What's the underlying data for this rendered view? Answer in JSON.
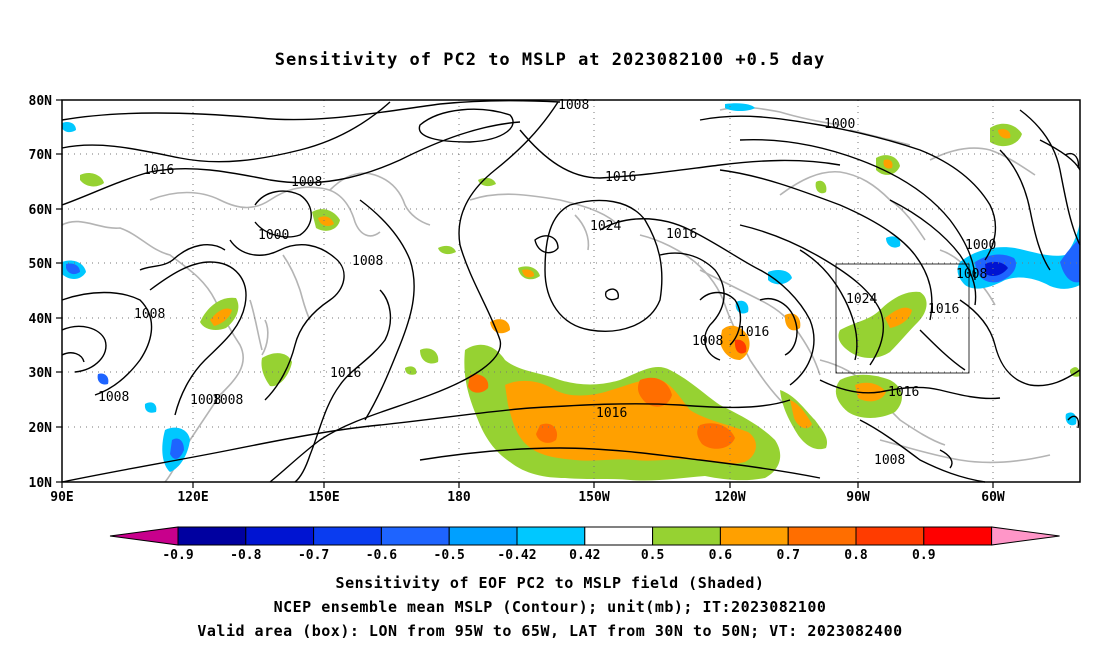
{
  "title": "Sensitivity of PC2 to MSLP at 2023082100 +0.5 day",
  "lat_labels": [
    "80N",
    "70N",
    "60N",
    "50N",
    "40N",
    "30N",
    "20N",
    "10N"
  ],
  "lon_labels": [
    "90E",
    "120E",
    "150E",
    "180",
    "150W",
    "120W",
    "90W",
    "60W"
  ],
  "contour_labels": {
    "c1": "1008",
    "c2": "1016",
    "c3": "1008",
    "c4": "1000",
    "c5": "1008",
    "c6": "1008",
    "c7": "1008",
    "c8": "1016",
    "c9": "1016",
    "c10": "1024",
    "c11": "1016",
    "c12": "1016",
    "c13": "1008",
    "c14": "1016",
    "c15": "1008",
    "c16": "1008",
    "c17": "1000",
    "c18": "1000",
    "c19": "1008",
    "c20": "1024",
    "c21": "1016",
    "c22": "1016",
    "c23": "1008",
    "c24": "1008"
  },
  "colorbar": {
    "labels": [
      "-0.9",
      "-0.8",
      "-0.7",
      "-0.6",
      "-0.5",
      "-0.42",
      "0.42",
      "0.5",
      "0.6",
      "0.7",
      "0.8",
      "0.9"
    ],
    "colors": [
      "#0000a0",
      "#0014d2",
      "#0a3cf0",
      "#1e64ff",
      "#00a0ff",
      "#00c8ff",
      "#ffffff",
      "#96d232",
      "#ffa000",
      "#ff6e00",
      "#ff3c00",
      "#ff0000"
    ],
    "low_end": "#c8008c",
    "high_end": "#ff96c8"
  },
  "box": {
    "lon": "95W to 65W",
    "lat": "30N to 50N"
  },
  "captions": {
    "line1": "Sensitivity of EOF PC2 to MSLP field (Shaded)",
    "line2": "NCEP ensemble mean MSLP (Contour); unit(mb); IT:2023082100",
    "line3": "Valid area (box): LON from 95W to 65W, LAT from 30N to 50N; VT: 2023082400"
  }
}
